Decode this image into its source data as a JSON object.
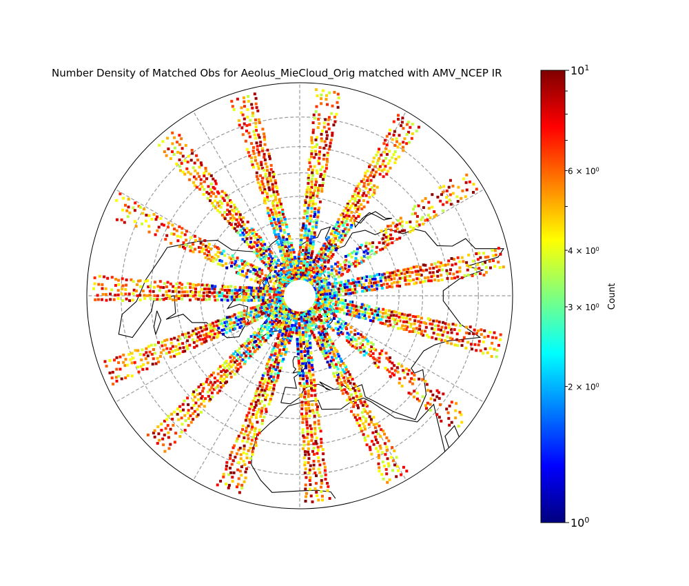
{
  "chart_data": {
    "type": "heatmap",
    "projection": "north-polar-stereographic",
    "title": "Number Density of Matched Obs for Aeolus_MieCloud_Orig matched with AMV_NCEP IR",
    "colorbar": {
      "label": "Count",
      "scale": "log",
      "range": [
        1,
        10
      ],
      "colormap": "jet",
      "major_ticks": [
        {
          "value": 1,
          "label": "10",
          "sup": "0"
        },
        {
          "value": 10,
          "label": "10",
          "sup": "1"
        }
      ],
      "minor_ticks": [
        {
          "value": 2,
          "label": "2 × 10",
          "sup": "0"
        },
        {
          "value": 3,
          "label": "3 × 10",
          "sup": "0"
        },
        {
          "value": 4,
          "label": "4 × 10",
          "sup": "0"
        },
        {
          "value": 6,
          "label": "6 × 10",
          "sup": "0"
        }
      ]
    },
    "gridlines": {
      "latitudes": [
        10,
        20,
        30,
        40,
        50,
        60,
        70,
        80
      ],
      "longitudes": [
        0,
        30,
        60,
        90,
        120,
        150,
        180,
        210,
        240,
        270,
        300,
        330
      ],
      "style": "dashed gray"
    },
    "extent_lat_min": 0,
    "no_data_pole_cap_lat": 85,
    "swaths": [
      {
        "lon": 5,
        "lat_start": 2,
        "lat_end": 82,
        "density": "high"
      },
      {
        "lon": 28,
        "lat_start": 2,
        "lat_end": 82,
        "density": "high"
      },
      {
        "lon": 52,
        "lat_start": 2,
        "lat_end": 82,
        "density": "medium"
      },
      {
        "lon": 76,
        "lat_start": 2,
        "lat_end": 82,
        "density": "high"
      },
      {
        "lon": 100,
        "lat_start": 2,
        "lat_end": 82,
        "density": "high"
      },
      {
        "lon": 124,
        "lat_start": 2,
        "lat_end": 82,
        "density": "medium"
      },
      {
        "lon": 148,
        "lat_start": 2,
        "lat_end": 82,
        "density": "high"
      },
      {
        "lon": 172,
        "lat_start": 2,
        "lat_end": 82,
        "density": "high"
      },
      {
        "lon": 196,
        "lat_start": 2,
        "lat_end": 82,
        "density": "high"
      },
      {
        "lon": 220,
        "lat_start": 2,
        "lat_end": 82,
        "density": "high"
      },
      {
        "lon": 244,
        "lat_start": 2,
        "lat_end": 82,
        "density": "medium"
      },
      {
        "lon": 268,
        "lat_start": 2,
        "lat_end": 82,
        "density": "high"
      },
      {
        "lon": 292,
        "lat_start": 2,
        "lat_end": 82,
        "density": "high"
      },
      {
        "lon": 316,
        "lat_start": 2,
        "lat_end": 82,
        "density": "high"
      },
      {
        "lon": 340,
        "lat_start": 2,
        "lat_end": 82,
        "density": "high"
      }
    ],
    "coastlines": [
      {
        "name": "north-america",
        "points": [
          [
            -168,
            66
          ],
          [
            -164,
            62
          ],
          [
            -160,
            58
          ],
          [
            -152,
            59
          ],
          [
            -145,
            60
          ],
          [
            -136,
            58
          ],
          [
            -130,
            54
          ],
          [
            -124,
            48
          ],
          [
            -124,
            40
          ],
          [
            -118,
            33
          ],
          [
            -110,
            23
          ],
          [
            -106,
            22
          ],
          [
            -96,
            18
          ],
          [
            -88,
            15
          ],
          [
            -84,
            10
          ],
          [
            -78,
            8
          ],
          [
            -76,
            12
          ],
          [
            -84,
            20
          ],
          [
            -88,
            21
          ],
          [
            -90,
            29
          ],
          [
            -82,
            29
          ],
          [
            -80,
            25
          ],
          [
            -81,
            32
          ],
          [
            -76,
            35
          ],
          [
            -74,
            41
          ],
          [
            -70,
            43
          ],
          [
            -66,
            45
          ],
          [
            -60,
            47
          ],
          [
            -56,
            52
          ],
          [
            -60,
            56
          ],
          [
            -64,
            60
          ],
          [
            -70,
            60
          ],
          [
            -78,
            62
          ],
          [
            -82,
            58
          ],
          [
            -80,
            52
          ],
          [
            -90,
            57
          ],
          [
            -94,
            60
          ],
          [
            -92,
            64
          ],
          [
            -86,
            66
          ],
          [
            -92,
            69
          ],
          [
            -100,
            68
          ],
          [
            -110,
            68
          ],
          [
            -120,
            70
          ],
          [
            -130,
            70
          ],
          [
            -140,
            70
          ],
          [
            -156,
            71
          ],
          [
            -163,
            69
          ],
          [
            -168,
            66
          ]
        ]
      },
      {
        "name": "greenland",
        "points": [
          [
            -73,
            78
          ],
          [
            -65,
            82
          ],
          [
            -45,
            83
          ],
          [
            -28,
            83
          ],
          [
            -20,
            80
          ],
          [
            -20,
            74
          ],
          [
            -24,
            70
          ],
          [
            -32,
            68
          ],
          [
            -40,
            65
          ],
          [
            -43,
            60
          ],
          [
            -48,
            61
          ],
          [
            -52,
            65
          ],
          [
            -54,
            68
          ],
          [
            -58,
            73
          ],
          [
            -66,
            76
          ],
          [
            -73,
            78
          ]
        ]
      },
      {
        "name": "eurasia",
        "points": [
          [
            -10,
            36
          ],
          [
            -9,
            43
          ],
          [
            -2,
            43
          ],
          [
            -4,
            48
          ],
          [
            2,
            51
          ],
          [
            5,
            53
          ],
          [
            8,
            57
          ],
          [
            10,
            58
          ],
          [
            5,
            62
          ],
          [
            14,
            67
          ],
          [
            20,
            70
          ],
          [
            28,
            71
          ],
          [
            33,
            69
          ],
          [
            40,
            67
          ],
          [
            44,
            68
          ],
          [
            52,
            68
          ],
          [
            60,
            69
          ],
          [
            68,
            70
          ],
          [
            72,
            73
          ],
          [
            80,
            73
          ],
          [
            90,
            75
          ],
          [
            104,
            78
          ],
          [
            112,
            74
          ],
          [
            126,
            73
          ],
          [
            140,
            72
          ],
          [
            152,
            71
          ],
          [
            160,
            70
          ],
          [
            170,
            70
          ],
          [
            180,
            66
          ],
          [
            178,
            63
          ],
          [
            170,
            60
          ],
          [
            163,
            58
          ],
          [
            162,
            54
          ],
          [
            156,
            51
          ],
          [
            156,
            57
          ],
          [
            150,
            59
          ],
          [
            142,
            59
          ],
          [
            138,
            55
          ],
          [
            140,
            48
          ],
          [
            135,
            43
          ],
          [
            129,
            41
          ],
          [
            127,
            35
          ],
          [
            121,
            31
          ],
          [
            120,
            26
          ],
          [
            117,
            23
          ],
          [
            110,
            21
          ],
          [
            108,
            16
          ],
          [
            109,
            11
          ],
          [
            105,
            9
          ],
          [
            103,
            1
          ],
          [
            101,
            3
          ],
          [
            100,
            13
          ],
          [
            98,
            8
          ],
          [
            96,
            16
          ],
          [
            92,
            22
          ],
          [
            88,
            22
          ],
          [
            80,
            15
          ],
          [
            77,
            8
          ],
          [
            73,
            18
          ],
          [
            70,
            22
          ],
          [
            66,
            25
          ],
          [
            57,
            26
          ],
          [
            56,
            24
          ],
          [
            59,
            22
          ],
          [
            52,
            16
          ],
          [
            43,
            13
          ],
          [
            39,
            20
          ],
          [
            35,
            28
          ],
          [
            33,
            31
          ],
          [
            35,
            36
          ],
          [
            28,
            37
          ],
          [
            26,
            40
          ],
          [
            23,
            39
          ],
          [
            20,
            40
          ],
          [
            13,
            45
          ],
          [
            16,
            41
          ],
          [
            18,
            40
          ],
          [
            12,
            44
          ],
          [
            9,
            44
          ],
          [
            3,
            43
          ],
          [
            0,
            39
          ],
          [
            -5,
            36
          ],
          [
            -10,
            36
          ]
        ]
      },
      {
        "name": "africa",
        "points": [
          [
            -17,
            15
          ],
          [
            -17,
            21
          ],
          [
            -13,
            27
          ],
          [
            -10,
            30
          ],
          [
            -6,
            35
          ],
          [
            2,
            37
          ],
          [
            10,
            37
          ],
          [
            11,
            33
          ],
          [
            20,
            31
          ],
          [
            25,
            32
          ],
          [
            32,
            31
          ],
          [
            34,
            28
          ],
          [
            38,
            18
          ],
          [
            43,
            12
          ],
          [
            51,
            12
          ],
          [
            48,
            8
          ],
          [
            43,
            0
          ]
        ]
      },
      {
        "name": "arabia-west",
        "points": [
          [
            -17,
            15
          ],
          [
            -16,
            11
          ],
          [
            -12,
            7
          ],
          [
            -8,
            4
          ],
          [
            0,
            5
          ],
          [
            5,
            5
          ],
          [
            9,
            4
          ],
          [
            10,
            2
          ]
        ]
      },
      {
        "name": "british-isles",
        "points": [
          [
            -5,
            50
          ],
          [
            1,
            51
          ],
          [
            2,
            53
          ],
          [
            -1,
            55
          ],
          [
            -2,
            58
          ],
          [
            -5,
            58
          ],
          [
            -6,
            56
          ],
          [
            -5,
            53
          ],
          [
            -3,
            52
          ],
          [
            -5,
            50
          ]
        ]
      },
      {
        "name": "iceland",
        "points": [
          [
            -24,
            64
          ],
          [
            -22,
            66
          ],
          [
            -16,
            66
          ],
          [
            -14,
            65
          ],
          [
            -18,
            63
          ],
          [
            -24,
            64
          ]
        ]
      },
      {
        "name": "japan",
        "points": [
          [
            130,
            31
          ],
          [
            132,
            34
          ],
          [
            136,
            35
          ],
          [
            140,
            36
          ],
          [
            141,
            40
          ],
          [
            141,
            45
          ],
          [
            144,
            43
          ],
          [
            140,
            42
          ],
          [
            140,
            38
          ],
          [
            138,
            34
          ],
          [
            132,
            33
          ],
          [
            130,
            31
          ]
        ]
      },
      {
        "name": "svalbard",
        "points": [
          [
            12,
            78
          ],
          [
            18,
            80
          ],
          [
            27,
            80
          ],
          [
            22,
            77
          ],
          [
            16,
            77
          ],
          [
            12,
            78
          ]
        ]
      },
      {
        "name": "novaya-zemlya",
        "points": [
          [
            52,
            71
          ],
          [
            56,
            74
          ],
          [
            62,
            76
          ],
          [
            68,
            77
          ],
          [
            60,
            75
          ],
          [
            55,
            72
          ],
          [
            52,
            71
          ]
        ]
      },
      {
        "name": "baffin",
        "points": [
          [
            -62,
            66
          ],
          [
            -68,
            70
          ],
          [
            -75,
            72
          ],
          [
            -84,
            73
          ],
          [
            -80,
            70
          ],
          [
            -72,
            67
          ],
          [
            -64,
            64
          ],
          [
            -62,
            66
          ]
        ]
      },
      {
        "name": "ellesmere",
        "points": [
          [
            -78,
            76
          ],
          [
            -90,
            80
          ],
          [
            -70,
            83
          ],
          [
            -62,
            82
          ],
          [
            -75,
            79
          ],
          [
            -78,
            76
          ]
        ]
      },
      {
        "name": "victoria-island",
        "points": [
          [
            -118,
            70
          ],
          [
            -108,
            73
          ],
          [
            -102,
            71
          ],
          [
            -110,
            69
          ],
          [
            -118,
            70
          ]
        ]
      },
      {
        "name": "cuba",
        "points": [
          [
            -84,
            22
          ],
          [
            -80,
            23
          ],
          [
            -75,
            20
          ],
          [
            -78,
            20
          ],
          [
            -84,
            22
          ]
        ]
      },
      {
        "name": "madagascar-north",
        "points": [
          [
            44,
            -1
          ],
          [
            48,
            -1
          ],
          [
            50,
            3
          ],
          [
            46,
            3
          ],
          [
            44,
            -1
          ]
        ]
      }
    ]
  }
}
